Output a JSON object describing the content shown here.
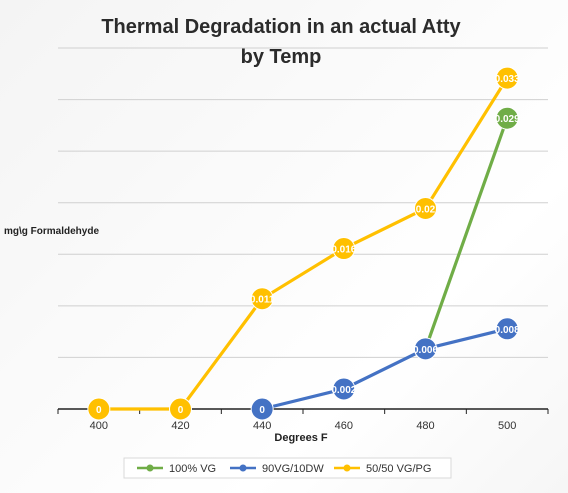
{
  "chart_data": {
    "type": "line",
    "title": "Thermal Degradation in an actual Atty",
    "subtitle": "by Temp",
    "xlabel": "Degrees F",
    "ylabel": "mg\\g Formaldehyde",
    "x": [
      "400",
      "420",
      "440",
      "460",
      "480",
      "500"
    ],
    "ylim": [
      0,
      0.036
    ],
    "grid": true,
    "legend": "bottom",
    "series": [
      {
        "name": "100% VG",
        "color": "#70ad47",
        "values": [
          null,
          null,
          null,
          null,
          0.006,
          0.029
        ],
        "labels": [
          null,
          null,
          null,
          null,
          null,
          "0.029"
        ]
      },
      {
        "name": "90VG/10DW",
        "color": "#4472c4",
        "values": [
          null,
          null,
          0,
          0.002,
          0.006,
          0.008
        ],
        "labels": [
          null,
          null,
          "0",
          "0.002",
          "0.006",
          "0.008"
        ]
      },
      {
        "name": "50/50 VG/PG",
        "color": "#ffc000",
        "values": [
          0,
          0,
          0.011,
          0.016,
          0.02,
          0.033
        ],
        "labels": [
          "0",
          "0",
          "0.011",
          "0.016",
          "0.02",
          "0.033"
        ]
      }
    ]
  }
}
